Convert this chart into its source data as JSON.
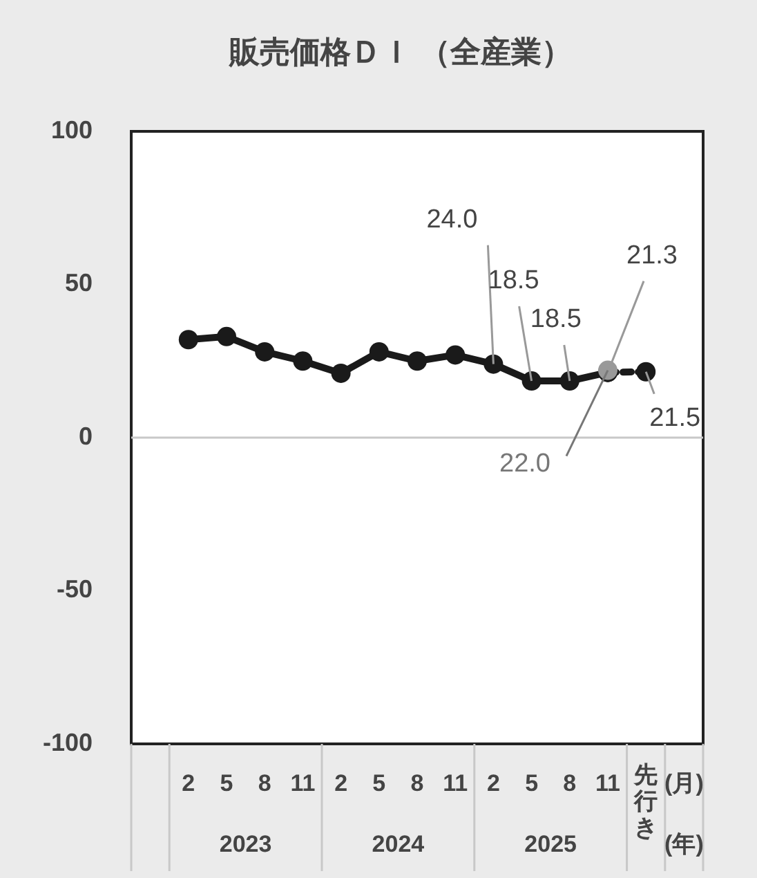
{
  "chart_data": {
    "type": "line",
    "title": "販売価格ＤＩ （全産業）",
    "categories": [
      null,
      "2",
      "5",
      "8",
      "11",
      "2",
      "5",
      "8",
      "11",
      "2",
      "5",
      "8",
      "11",
      "先行き",
      "(月)"
    ],
    "annotations": [
      "2023",
      "2024",
      "2025",
      "(年)"
    ],
    "ylim": [
      -100,
      100
    ],
    "yticks": [
      -100,
      -50,
      0,
      50,
      100
    ],
    "grid": false,
    "ref_lines": [
      {
        "axis": "y",
        "value": 0,
        "color": "#c8c8c8"
      }
    ],
    "series": [
      {
        "type": "line",
        "color": "#1a1a1a",
        "marker": "circle",
        "line_style": "solid",
        "values": [
          null,
          32,
          33,
          28,
          25,
          21,
          28,
          25,
          27,
          24.0,
          18.5,
          18.5,
          21.3,
          null,
          null
        ],
        "value_labels": [
          null,
          null,
          null,
          null,
          null,
          null,
          null,
          null,
          null,
          "24.0",
          "18.5",
          "18.5",
          "21.3",
          null,
          null
        ]
      },
      {
        "type": "line",
        "color": "#1a1a1a",
        "marker": "circle",
        "line_style": "dashed",
        "values": [
          null,
          null,
          null,
          null,
          null,
          null,
          null,
          null,
          null,
          null,
          null,
          null,
          21.3,
          21.5,
          null
        ],
        "value_labels": [
          null,
          null,
          null,
          null,
          null,
          null,
          null,
          null,
          null,
          null,
          null,
          null,
          null,
          "21.5",
          null
        ]
      },
      {
        "type": "scatter",
        "color": "#999999",
        "marker": "circle",
        "values": [
          null,
          null,
          null,
          null,
          null,
          null,
          null,
          null,
          null,
          null,
          null,
          null,
          22.0,
          null,
          null
        ],
        "value_labels": [
          null,
          null,
          null,
          null,
          null,
          null,
          null,
          null,
          null,
          null,
          null,
          null,
          "22.0",
          null,
          null
        ]
      }
    ]
  }
}
